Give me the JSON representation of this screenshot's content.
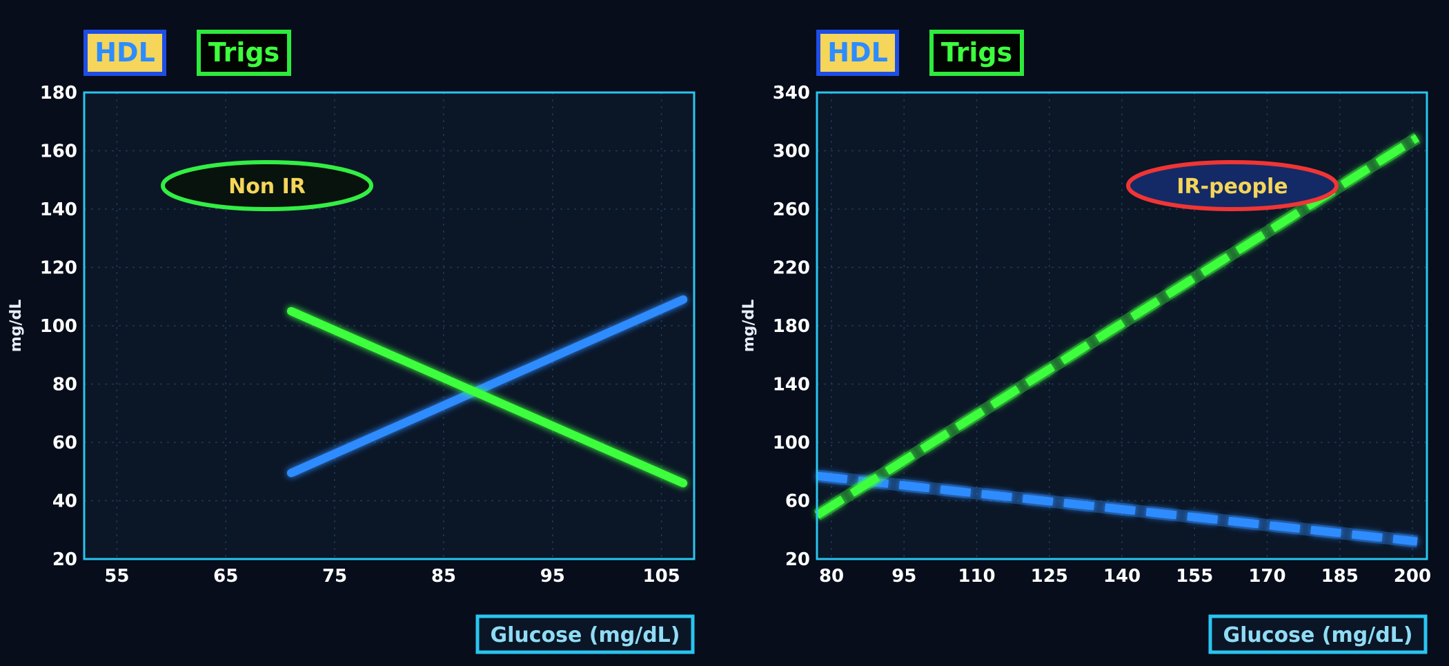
{
  "colors": {
    "background": "#070d1a",
    "plot_bg": "#0b1627",
    "frame": "#29c5f0",
    "grid": "#1d3c55",
    "hdl": "#2d8cff",
    "trigs": "#3dff3d",
    "legend_hdl_fill": "#f5d55a",
    "legend_hdl_border": "#1e4ee6",
    "legend_trigs_border": "#2eea3c",
    "annot_left_border": "#33ee44",
    "annot_left_fill": "#07130c",
    "annot_right_border": "#f03535",
    "annot_right_fill": "#142a66"
  },
  "chart_data": [
    {
      "type": "line",
      "legend": [
        "HDL",
        "Trigs"
      ],
      "legend_placement": "top-left",
      "annotation": "Non IR",
      "xlabel": "Glucose  (mg/dL)",
      "ylabel": "mg/dL",
      "xlim": [
        52,
        108
      ],
      "ylim": [
        20,
        180
      ],
      "xticks": [
        55,
        65,
        75,
        85,
        95,
        105
      ],
      "yticks": [
        20,
        40,
        60,
        80,
        100,
        120,
        140,
        160,
        180
      ],
      "grid": true,
      "series": [
        {
          "name": "HDL",
          "style": "solid",
          "x": [
            71,
            107
          ],
          "y": [
            49.5,
            109
          ]
        },
        {
          "name": "Trigs",
          "style": "solid",
          "x": [
            71,
            107
          ],
          "y": [
            105,
            46
          ]
        }
      ]
    },
    {
      "type": "line",
      "legend": [
        "HDL",
        "Trigs"
      ],
      "legend_placement": "top-left",
      "annotation": "IR-people",
      "xlabel": "Glucose  (mg/dL)",
      "ylabel": "mg/dL",
      "xlim": [
        77,
        203
      ],
      "ylim": [
        20,
        340
      ],
      "xticks": [
        80,
        95,
        110,
        125,
        140,
        155,
        170,
        185,
        200
      ],
      "yticks": [
        20,
        60,
        100,
        140,
        180,
        220,
        260,
        300,
        340
      ],
      "grid": true,
      "series": [
        {
          "name": "HDL",
          "style": "dashed",
          "x": [
            77,
            201
          ],
          "y": [
            77,
            32
          ]
        },
        {
          "name": "Trigs",
          "style": "dashed",
          "x": [
            77,
            201
          ],
          "y": [
            50,
            309
          ]
        }
      ]
    }
  ]
}
